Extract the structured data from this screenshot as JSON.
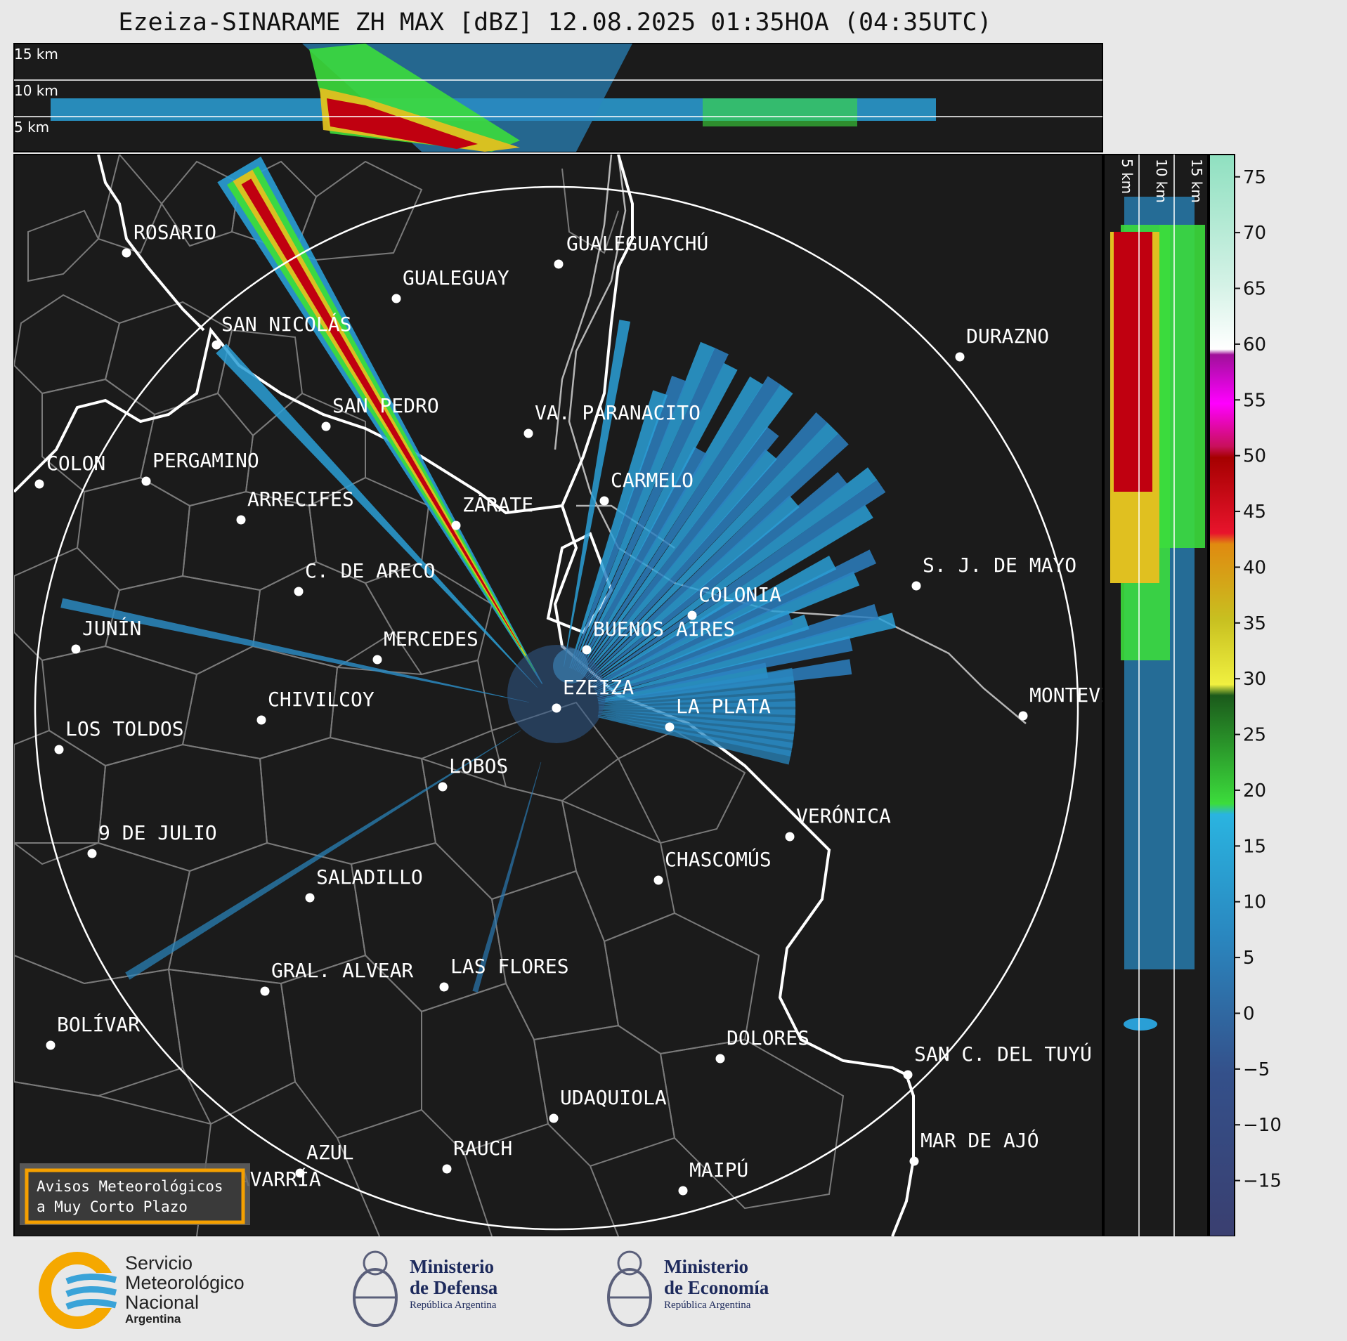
{
  "title": "Ezeiza-SINARAME ZH MAX [dBZ] 12.08.2025 01:35HOA (04:35UTC)",
  "top_panel": {
    "height_labels": [
      "15 km",
      "10 km",
      "5 km"
    ]
  },
  "side_panel": {
    "height_labels": [
      "5 km",
      "10 km",
      "15 km"
    ]
  },
  "colorbar": {
    "ticks": [
      "75",
      "70",
      "65",
      "60",
      "55",
      "50",
      "45",
      "40",
      "35",
      "30",
      "25",
      "20",
      "15",
      "10",
      "5",
      "0",
      "−5",
      "−10",
      "−15"
    ],
    "min": -20,
    "max": 77
  },
  "cities": [
    {
      "id": "rosario",
      "name": "ROSARIO"
    },
    {
      "id": "gualeguaychu",
      "name": "GUALEGUAYCHÚ"
    },
    {
      "id": "gualeguay",
      "name": "GUALEGUAY"
    },
    {
      "id": "san-nicolas",
      "name": "SAN NICOLÁS"
    },
    {
      "id": "durazno",
      "name": "DURAZNO"
    },
    {
      "id": "san-pedro",
      "name": "SAN PEDRO"
    },
    {
      "id": "paranacito",
      "name": "VA. PARANACITO"
    },
    {
      "id": "colon",
      "name": "COLON"
    },
    {
      "id": "pergamino",
      "name": "PERGAMINO"
    },
    {
      "id": "carmelo",
      "name": "CARMELO"
    },
    {
      "id": "arrecifes",
      "name": "ARRECIFES"
    },
    {
      "id": "zarate",
      "name": "ZÁRATE"
    },
    {
      "id": "s-j-de-mayo",
      "name": "S. J. DE MAYO"
    },
    {
      "id": "c-de-areco",
      "name": "C. DE ARECO"
    },
    {
      "id": "colonia",
      "name": "COLONIA"
    },
    {
      "id": "junin",
      "name": "JUNÍN"
    },
    {
      "id": "buenos-aires",
      "name": "BUENOS AIRES"
    },
    {
      "id": "mercedes",
      "name": "MERCEDES"
    },
    {
      "id": "ezeiza",
      "name": "EZEIZA"
    },
    {
      "id": "montevideo",
      "name": "MONTEVIDEO"
    },
    {
      "id": "chivilcoy",
      "name": "CHIVILCOY"
    },
    {
      "id": "la-plata",
      "name": "LA PLATA"
    },
    {
      "id": "los-toldos",
      "name": "LOS TOLDOS"
    },
    {
      "id": "lobos",
      "name": "LOBOS"
    },
    {
      "id": "veronica",
      "name": "VERÓNICA"
    },
    {
      "id": "9-de-julio",
      "name": "9 DE JULIO"
    },
    {
      "id": "chascomus",
      "name": "CHASCOMÚS"
    },
    {
      "id": "saladillo",
      "name": "SALADILLO"
    },
    {
      "id": "gral-alvear",
      "name": "GRAL. ALVEAR"
    },
    {
      "id": "las-flores",
      "name": "LAS FLORES"
    },
    {
      "id": "bolivar",
      "name": "BOLÍVAR"
    },
    {
      "id": "dolores",
      "name": "DOLORES"
    },
    {
      "id": "san-c-del-tuyu",
      "name": "SAN C. DEL TUYÚ"
    },
    {
      "id": "udaquiola",
      "name": "UDAQUIOLA"
    },
    {
      "id": "mar-de-ajo",
      "name": "MAR DE AJÓ"
    },
    {
      "id": "azul",
      "name": "AZUL"
    },
    {
      "id": "rauch",
      "name": "RAUCH"
    },
    {
      "id": "maipu",
      "name": "MAIPÚ"
    },
    {
      "id": "olavarria",
      "name": "OLAVARRÍA"
    }
  ],
  "warning_box": {
    "line1": "Avisos Meteorológicos",
    "line2": "a Muy Corto Plazo"
  },
  "logos": {
    "smn": {
      "line1": "Servicio",
      "line2": "Meteorológico",
      "line3": "Nacional",
      "line4": "Argentina"
    },
    "defensa": {
      "line1": "Ministerio",
      "line2": "de Defensa",
      "line3": "República Argentina"
    },
    "economia": {
      "line1": "Ministerio",
      "line2": "de Economía",
      "line3": "República Argentina"
    }
  },
  "colors": {
    "panel": "#1b1b1b",
    "accent_box": "#f5a000",
    "range_ring": "#ffffff"
  }
}
